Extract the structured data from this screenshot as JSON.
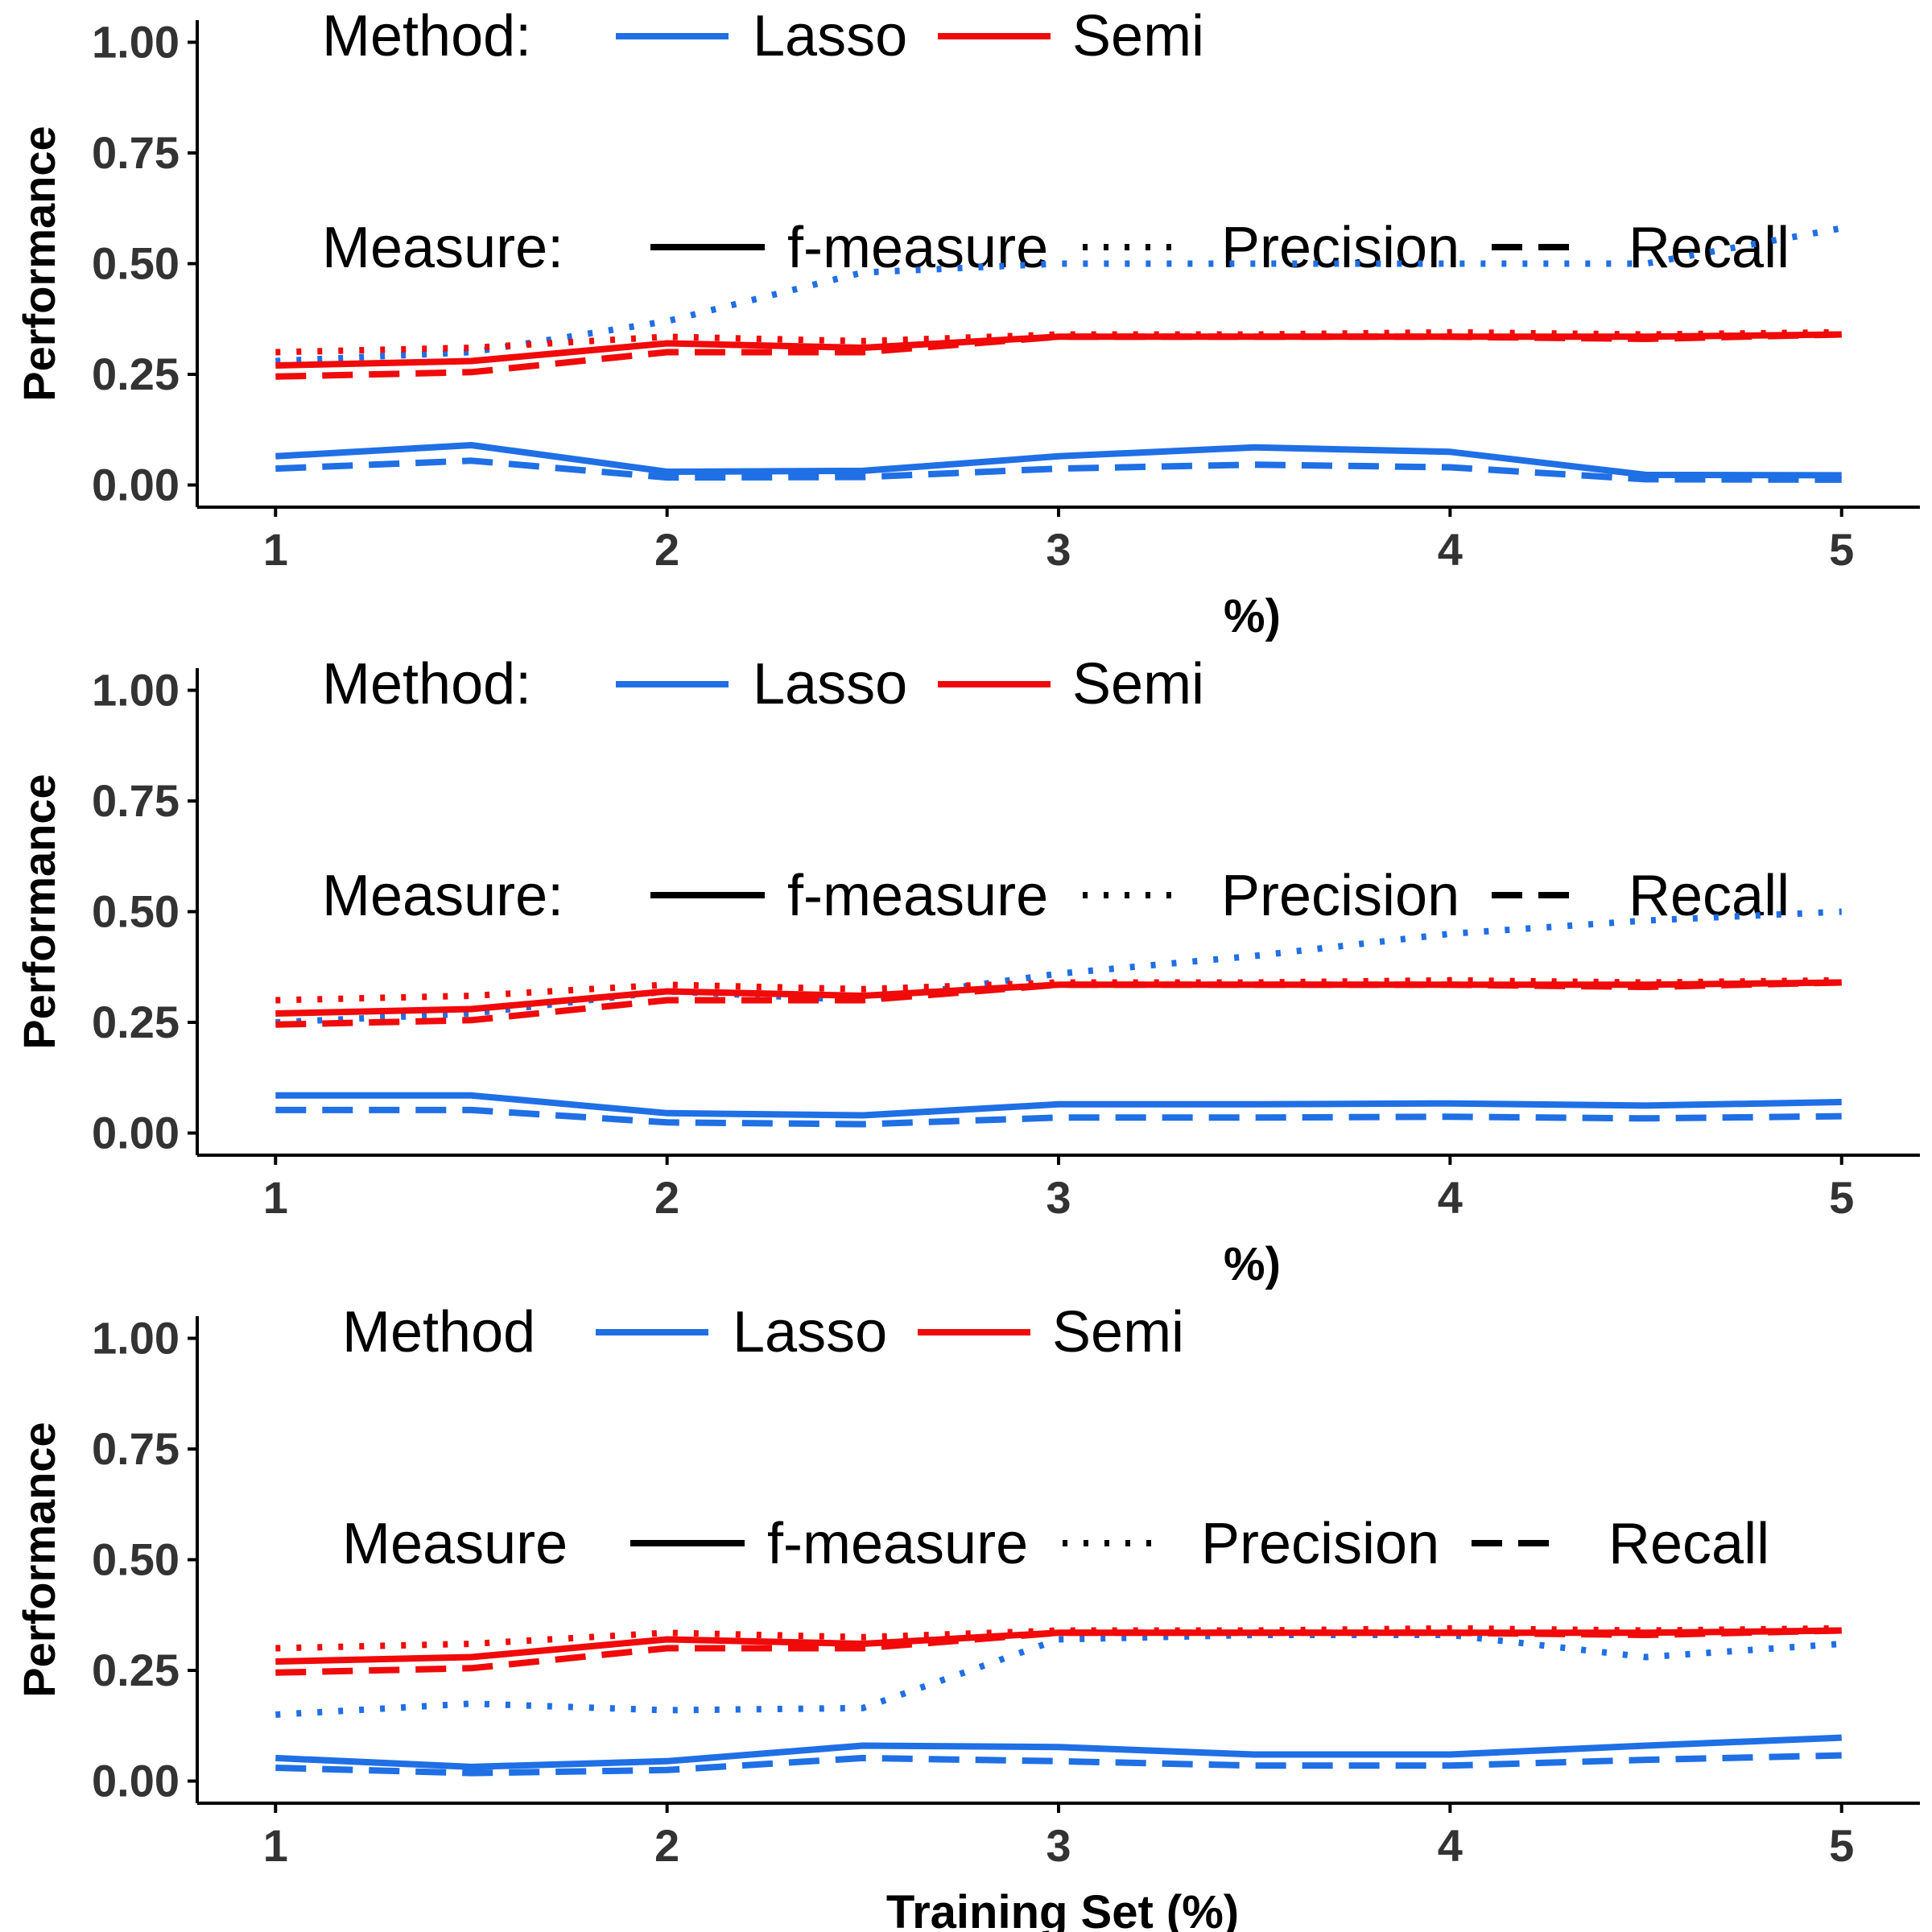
{
  "colors": {
    "lasso": "#1F6FE5",
    "semi": "#F00A0A",
    "axis": "#000000",
    "tick_text": "#333333"
  },
  "chart_data": [
    {
      "type": "line",
      "ylabel": "Performance",
      "xlabel": "Training Set (%)",
      "xlabel_visible": "%)",
      "xlim": [
        0.8,
        5.2
      ],
      "ylim": [
        -0.05,
        1.05
      ],
      "x_ticks": [
        "1",
        "2",
        "3",
        "4",
        "5"
      ],
      "y_ticks": [
        "0.00",
        "0.25",
        "0.50",
        "0.75",
        "1.00"
      ],
      "legend_method": {
        "title": "Method:",
        "items": [
          "Lasso",
          "Semi"
        ]
      },
      "legend_measure": {
        "title": "Measure:",
        "items": [
          "f-measure",
          "Precision",
          "Recall"
        ]
      },
      "x": [
        1,
        1.5,
        2,
        2.5,
        3,
        3.5,
        4,
        4.5,
        5
      ],
      "series": [
        {
          "method": "Lasso",
          "measure": "f-measure",
          "values": [
            0.065,
            0.09,
            0.03,
            0.032,
            0.065,
            0.085,
            0.075,
            0.023,
            0.022
          ]
        },
        {
          "method": "Lasso",
          "measure": "Recall",
          "values": [
            0.037,
            0.055,
            0.017,
            0.018,
            0.037,
            0.046,
            0.04,
            0.013,
            0.012
          ]
        },
        {
          "method": "Lasso",
          "measure": "Precision",
          "values": [
            0.28,
            0.3,
            0.37,
            0.48,
            0.5,
            0.5,
            0.5,
            0.5,
            0.58
          ]
        },
        {
          "method": "Semi",
          "measure": "f-measure",
          "values": [
            0.27,
            0.28,
            0.32,
            0.31,
            0.335,
            0.335,
            0.335,
            0.335,
            0.34
          ]
        },
        {
          "method": "Semi",
          "measure": "Precision",
          "values": [
            0.3,
            0.31,
            0.335,
            0.325,
            0.34,
            0.34,
            0.345,
            0.34,
            0.345
          ]
        },
        {
          "method": "Semi",
          "measure": "Recall",
          "values": [
            0.245,
            0.255,
            0.3,
            0.3,
            0.335,
            0.335,
            0.335,
            0.33,
            0.34
          ]
        }
      ]
    },
    {
      "type": "line",
      "ylabel": "Performance",
      "xlabel": "Training Set (%)",
      "xlabel_visible": "%)",
      "xlim": [
        0.8,
        5.2
      ],
      "ylim": [
        -0.05,
        1.05
      ],
      "x_ticks": [
        "1",
        "2",
        "3",
        "4",
        "5"
      ],
      "y_ticks": [
        "0.00",
        "0.25",
        "0.50",
        "0.75",
        "1.00"
      ],
      "legend_method": {
        "title": "Method:",
        "items": [
          "Lasso",
          "Semi"
        ]
      },
      "legend_measure": {
        "title": "Measure:",
        "items": [
          "f-measure",
          "Precision",
          "Recall"
        ]
      },
      "x": [
        1,
        1.5,
        2,
        2.5,
        3,
        3.5,
        4,
        4.5,
        5
      ],
      "series": [
        {
          "method": "Lasso",
          "measure": "f-measure",
          "values": [
            0.085,
            0.085,
            0.045,
            0.04,
            0.065,
            0.065,
            0.067,
            0.062,
            0.07
          ]
        },
        {
          "method": "Lasso",
          "measure": "Recall",
          "values": [
            0.052,
            0.052,
            0.024,
            0.02,
            0.035,
            0.035,
            0.037,
            0.033,
            0.038
          ]
        },
        {
          "method": "Lasso",
          "measure": "Precision",
          "values": [
            0.25,
            0.27,
            0.32,
            0.3,
            0.36,
            0.4,
            0.45,
            0.48,
            0.5
          ]
        },
        {
          "method": "Semi",
          "measure": "f-measure",
          "values": [
            0.27,
            0.28,
            0.32,
            0.31,
            0.335,
            0.335,
            0.335,
            0.335,
            0.34
          ]
        },
        {
          "method": "Semi",
          "measure": "Precision",
          "values": [
            0.3,
            0.31,
            0.335,
            0.325,
            0.34,
            0.34,
            0.345,
            0.34,
            0.345
          ]
        },
        {
          "method": "Semi",
          "measure": "Recall",
          "values": [
            0.245,
            0.255,
            0.3,
            0.3,
            0.335,
            0.335,
            0.335,
            0.33,
            0.34
          ]
        }
      ]
    },
    {
      "type": "line",
      "ylabel": "Performance",
      "xlabel": "Training Set (%)",
      "xlabel_visible": "Training Set (%)",
      "xlim": [
        0.8,
        5.2
      ],
      "ylim": [
        -0.05,
        1.05
      ],
      "x_ticks": [
        "1",
        "2",
        "3",
        "4",
        "5"
      ],
      "y_ticks": [
        "0.00",
        "0.25",
        "0.50",
        "0.75",
        "1.00"
      ],
      "legend_method": {
        "title": "Method",
        "items": [
          "Lasso",
          "Semi"
        ]
      },
      "legend_measure": {
        "title": "Measure",
        "items": [
          "f-measure",
          "Precision",
          "Recall"
        ]
      },
      "x": [
        1,
        1.5,
        2,
        2.5,
        3,
        3.5,
        4,
        4.5,
        5
      ],
      "series": [
        {
          "method": "Lasso",
          "measure": "f-measure",
          "values": [
            0.052,
            0.032,
            0.045,
            0.08,
            0.077,
            0.06,
            0.06,
            0.08,
            0.098
          ]
        },
        {
          "method": "Lasso",
          "measure": "Recall",
          "values": [
            0.03,
            0.018,
            0.025,
            0.052,
            0.045,
            0.035,
            0.035,
            0.048,
            0.058
          ]
        },
        {
          "method": "Lasso",
          "measure": "Precision",
          "values": [
            0.15,
            0.175,
            0.16,
            0.165,
            0.32,
            0.33,
            0.33,
            0.28,
            0.31
          ]
        },
        {
          "method": "Semi",
          "measure": "f-measure",
          "values": [
            0.27,
            0.28,
            0.32,
            0.31,
            0.335,
            0.335,
            0.335,
            0.335,
            0.34
          ]
        },
        {
          "method": "Semi",
          "measure": "Precision",
          "values": [
            0.3,
            0.31,
            0.335,
            0.325,
            0.34,
            0.34,
            0.345,
            0.34,
            0.345
          ]
        },
        {
          "method": "Semi",
          "measure": "Recall",
          "values": [
            0.245,
            0.255,
            0.3,
            0.3,
            0.335,
            0.335,
            0.335,
            0.33,
            0.34
          ]
        }
      ]
    }
  ]
}
